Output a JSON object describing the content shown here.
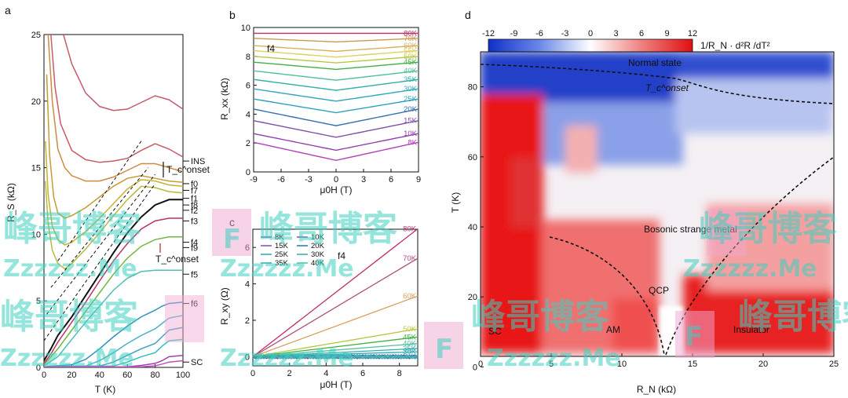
{
  "chart_data": [
    {
      "panel": "a",
      "type": "line",
      "xlabel": "T (K)",
      "ylabel": "R_S (kΩ)",
      "xlim": [
        0,
        100
      ],
      "ylim": [
        0,
        25
      ],
      "xticks": [
        "0",
        "20",
        "40",
        "60",
        "80",
        "100"
      ],
      "yticks": [
        "0",
        "5",
        "10",
        "15",
        "20",
        "25"
      ],
      "labels": [
        "INS",
        "f0",
        "f7",
        "f1",
        "f8",
        "f2",
        "f3",
        "f4",
        "f9",
        "f5",
        "f6",
        "SC"
      ],
      "label_values": [
        15.5,
        13.8,
        13.3,
        12.7,
        12.2,
        11.8,
        11.0,
        9.4,
        9.0,
        7.0,
        4.8,
        0.4
      ],
      "annotations": [
        "T_c^onset",
        "T_c^onset"
      ],
      "series": [
        {
          "color": "#c85a6a",
          "x": [
            14,
            20,
            30,
            40,
            50,
            60,
            70,
            80,
            90,
            100
          ],
          "y": [
            25,
            22.8,
            20.6,
            19.6,
            19.3,
            19.4,
            19.9,
            20.4,
            20.1,
            19.4
          ]
        },
        {
          "color": "#c85a6a",
          "x": [
            5,
            8,
            12,
            20,
            30,
            40,
            50,
            60,
            70,
            80,
            90,
            100
          ],
          "y": [
            25,
            21.0,
            18.3,
            16.3,
            15.6,
            15.4,
            15.5,
            15.7,
            16.3,
            16.8,
            16.4,
            15.8
          ]
        },
        {
          "color": "#d08a40",
          "x": [
            3,
            6,
            10,
            15,
            20,
            30,
            40,
            50,
            60,
            70,
            80,
            90,
            100
          ],
          "y": [
            25,
            20.0,
            16.4,
            15.0,
            14.4,
            14.0,
            14.0,
            14.3,
            14.8,
            15.3,
            15.3,
            15.0,
            14.7
          ]
        },
        {
          "color": "#c89a30",
          "x": [
            2,
            4,
            7,
            10,
            15,
            20,
            30,
            40,
            50,
            60,
            70,
            80,
            90,
            100
          ],
          "y": [
            22,
            16.0,
            12.8,
            11.6,
            11.2,
            11.4,
            12.0,
            12.8,
            13.6,
            14.2,
            14.4,
            14.2,
            14.0,
            13.9
          ]
        },
        {
          "color": "#c8b030",
          "x": [
            1,
            3,
            6,
            10,
            15,
            20,
            30,
            40,
            50,
            60,
            70,
            80,
            90,
            100
          ],
          "y": [
            17,
            13.0,
            10.6,
            9.6,
            9.2,
            9.4,
            10.2,
            11.2,
            12.3,
            13.4,
            14.1,
            14.0,
            13.7,
            13.6
          ]
        },
        {
          "color": "#b8b840",
          "x": [
            1,
            3,
            6,
            10,
            15,
            20,
            30,
            40,
            50,
            60,
            70,
            80,
            90,
            100
          ],
          "y": [
            14,
            10.8,
            8.8,
            7.8,
            7.4,
            7.8,
            8.9,
            10.1,
            11.4,
            12.6,
            13.6,
            13.5,
            13.2,
            13.1
          ]
        },
        {
          "color": "#111111",
          "x": [
            0,
            5,
            10,
            20,
            30,
            40,
            50,
            60,
            70,
            80,
            90,
            100
          ],
          "y": [
            0.5,
            1.4,
            2.4,
            3.8,
            5.4,
            7.0,
            8.6,
            10.1,
            11.3,
            12.2,
            12.6,
            12.6
          ]
        },
        {
          "color": "#c0306a",
          "x": [
            0,
            5,
            10,
            20,
            30,
            40,
            50,
            60,
            70,
            80,
            90,
            100
          ],
          "y": [
            0.3,
            1.0,
            1.9,
            3.4,
            4.9,
            6.5,
            8.0,
            9.3,
            10.4,
            11.0,
            11.2,
            11.2
          ]
        },
        {
          "color": "#70b840",
          "x": [
            0,
            10,
            20,
            30,
            40,
            50,
            60,
            70,
            80,
            90,
            100
          ],
          "y": [
            0.2,
            1.4,
            2.8,
            4.2,
            5.6,
            7.0,
            8.2,
            9.1,
            9.6,
            9.8,
            9.8
          ]
        },
        {
          "color": "#50c0b0",
          "x": [
            0,
            10,
            20,
            30,
            40,
            50,
            60,
            70,
            80,
            90,
            100
          ],
          "y": [
            0.1,
            0.8,
            2.1,
            3.4,
            4.6,
            5.8,
            6.7,
            7.2,
            7.3,
            7.3,
            7.3
          ]
        },
        {
          "color": "#3090c0",
          "x": [
            0,
            20,
            30,
            40,
            50,
            60,
            70,
            80,
            85,
            90,
            100
          ],
          "y": [
            0.05,
            0.2,
            0.6,
            1.4,
            2.3,
            3.1,
            3.8,
            4.3,
            4.6,
            4.8,
            4.9
          ]
        },
        {
          "color": "#50b0c8",
          "x": [
            0,
            30,
            40,
            50,
            60,
            70,
            80,
            85,
            90,
            100
          ],
          "y": [
            0.05,
            0.1,
            0.5,
            1.1,
            1.8,
            2.4,
            2.9,
            3.3,
            3.7,
            3.9
          ]
        },
        {
          "color": "#40a0c0",
          "x": [
            0,
            40,
            50,
            60,
            70,
            80,
            85,
            90,
            100
          ],
          "y": [
            0.05,
            0.1,
            0.4,
            0.9,
            1.4,
            1.8,
            2.3,
            2.8,
            3.0
          ]
        },
        {
          "color": "#30c0b8",
          "x": [
            0,
            50,
            60,
            70,
            80,
            85,
            90,
            100
          ],
          "y": [
            0.05,
            0.1,
            0.4,
            0.8,
            1.1,
            1.6,
            2.0,
            2.1
          ]
        },
        {
          "color": "#a040b0",
          "x": [
            0,
            60,
            70,
            80,
            85,
            90,
            100
          ],
          "y": [
            0.02,
            0.05,
            0.15,
            0.3,
            0.5,
            0.8,
            0.9
          ]
        },
        {
          "color": "#c050c0",
          "x": [
            0,
            70,
            80,
            85,
            90,
            100
          ],
          "y": [
            0.02,
            0.05,
            0.12,
            0.25,
            0.4,
            0.5
          ]
        }
      ]
    },
    {
      "panel": "b",
      "type": "line",
      "inner_label": "f4",
      "xlabel": "μ0H (T)",
      "ylabel": "R_xx (kΩ)",
      "xlim": [
        -9,
        9
      ],
      "ylim": [
        0,
        10
      ],
      "xticks": [
        "-9",
        "-6",
        "-3",
        "0",
        "3",
        "6",
        "9"
      ],
      "yticks": [
        "0",
        "2",
        "4",
        "6",
        "8",
        "10"
      ],
      "series": [
        {
          "name": "80K",
          "color": "#c0306a",
          "center": 9.6,
          "edge": 9.6
        },
        {
          "name": "70K",
          "color": "#c89a50",
          "center": 9.0,
          "edge": 9.25
        },
        {
          "name": "60K",
          "color": "#d8b060",
          "center": 8.35,
          "edge": 8.75
        },
        {
          "name": "55K",
          "color": "#e0d060",
          "center": 7.95,
          "edge": 8.4
        },
        {
          "name": "50K",
          "color": "#b8c840",
          "center": 7.55,
          "edge": 8.0
        },
        {
          "name": "45K",
          "color": "#40b040",
          "center": 7.1,
          "edge": 7.6
        },
        {
          "name": "40K",
          "color": "#50c0a0",
          "center": 6.35,
          "edge": 7.0
        },
        {
          "name": "35K",
          "color": "#30b0a8",
          "center": 5.65,
          "edge": 6.4
        },
        {
          "name": "30K",
          "color": "#30a8b8",
          "center": 4.9,
          "edge": 5.75
        },
        {
          "name": "25K",
          "color": "#30a0c0",
          "center": 4.1,
          "edge": 5.05
        },
        {
          "name": "20K",
          "color": "#3070b0",
          "center": 3.2,
          "edge": 4.35
        },
        {
          "name": "15K",
          "color": "#8050a8",
          "center": 2.4,
          "edge": 3.55
        },
        {
          "name": "10K",
          "color": "#9040b0",
          "center": 1.5,
          "edge": 2.65
        },
        {
          "name": "8K",
          "color": "#b040b8",
          "center": 0.8,
          "edge": 2.05
        }
      ]
    },
    {
      "panel": "c",
      "type": "line",
      "inner_label": "f4",
      "xlabel": "μ0H (T)",
      "ylabel": "R_xy (Ω)",
      "xlim": [
        0,
        9
      ],
      "ylim": [
        -0.5,
        7
      ],
      "xticks": [
        "0",
        "2",
        "4",
        "6",
        "8"
      ],
      "yticks": [
        "0",
        "2",
        "4",
        "6"
      ],
      "legend": [
        "8K",
        "10K",
        "15K",
        "20K",
        "25K",
        "30K",
        "35K",
        "40K"
      ],
      "legend_colors": [
        "#b040b8",
        "#9040b0",
        "#8050a8",
        "#3070b0",
        "#30a0c0",
        "#30a8b8",
        "#30b0a8",
        "#50c0a0"
      ],
      "series": [
        {
          "name": "80K",
          "color": "#c0306a",
          "slope": 0.78
        },
        {
          "name": "70K",
          "color": "#b05078",
          "slope": 0.6
        },
        {
          "name": "60K",
          "color": "#d8a060",
          "slope": 0.37
        },
        {
          "name": "50K",
          "color": "#b8c840",
          "slope": 0.17
        },
        {
          "name": "45K",
          "color": "#40b040",
          "slope": 0.12
        },
        {
          "name": "40K",
          "color": "#50c0a0",
          "slope": 0.08
        },
        {
          "name": "35K",
          "color": "#30b0a8",
          "slope": 0.05
        },
        {
          "name": "30K",
          "color": "#30a8b8",
          "slope": 0.03
        }
      ]
    },
    {
      "panel": "d",
      "type": "heatmap",
      "xlabel": "R_N (kΩ)",
      "ylabel": "T (K)",
      "xlim": [
        0,
        25
      ],
      "ylim": [
        3,
        90
      ],
      "xticks": [
        "0",
        "5",
        "10",
        "15",
        "20",
        "25"
      ],
      "yticks": [
        "0",
        "20",
        "40",
        "60",
        "80"
      ],
      "colorbar_ticks": [
        "-12",
        "-9",
        "-6",
        "-3",
        "0",
        "3",
        "6",
        "9",
        "12"
      ],
      "colorbar_label": "1/R_N · d²R /dT²",
      "regions": [
        "Normal state",
        "Bosonic strange metal",
        "QCP",
        "SC",
        "Insulator",
        "AM"
      ],
      "onset_label": "T_c^onset"
    }
  ],
  "panel_labels": [
    "a",
    "b",
    "c",
    "d"
  ],
  "watermark": {
    "cn": "峰哥博客",
    "en": "Zzzzzz.Me",
    "letter": "F"
  },
  "colors": {
    "blue": "#1a3ccc",
    "red": "#e01818",
    "white": "#ffffff"
  }
}
